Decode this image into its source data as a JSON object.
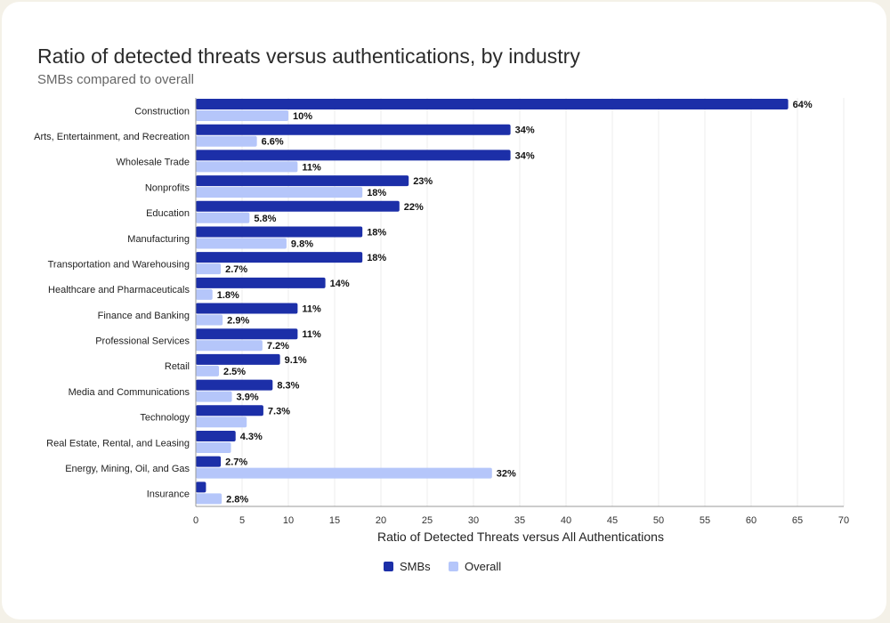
{
  "chart_data": {
    "type": "bar",
    "orientation": "horizontal",
    "title": "Ratio of detected threats versus authentications, by industry",
    "subtitle": "SMBs compared to overall",
    "xlabel": "Ratio of Detected Threats versus All Authentications",
    "ylabel": "",
    "xlim": [
      0,
      70
    ],
    "xticks": [
      "0",
      "5",
      "10",
      "15",
      "20",
      "25",
      "30",
      "35",
      "40",
      "45",
      "50",
      "55",
      "60",
      "65",
      "70"
    ],
    "grid": true,
    "legend_position": "bottom",
    "categories": [
      "Construction",
      "Arts, Entertainment, and Recreation",
      "Wholesale Trade",
      "Nonprofits",
      "Education",
      "Manufacturing",
      "Transportation and Warehousing",
      "Healthcare and Pharmaceuticals",
      "Finance and Banking",
      "Professional Services",
      "Retail",
      "Media and Communications",
      "Technology",
      "Real Estate, Rental, and Leasing",
      "Energy, Mining, Oil, and Gas",
      "Insurance"
    ],
    "series": [
      {
        "name": "SMBs",
        "color": "#1c2fa8",
        "values": [
          64,
          34,
          34,
          23,
          22,
          18,
          18,
          14,
          11,
          11,
          9.1,
          8.3,
          7.3,
          4.3,
          2.7,
          1.1
        ],
        "labels": [
          "64%",
          "34%",
          "34%",
          "23%",
          "22%",
          "18%",
          "18%",
          "14%",
          "11%",
          "11%",
          "9.1%",
          "8.3%",
          "7.3%",
          "4.3%",
          "2.7%",
          ""
        ]
      },
      {
        "name": "Overall",
        "color": "#b5c6fa",
        "values": [
          10,
          6.6,
          11,
          18,
          5.8,
          9.8,
          2.7,
          1.8,
          2.9,
          7.2,
          2.5,
          3.9,
          5.5,
          3.8,
          32,
          2.8
        ],
        "labels": [
          "10%",
          "6.6%",
          "11%",
          "18%",
          "5.8%",
          "9.8%",
          "2.7%",
          "1.8%",
          "2.9%",
          "7.2%",
          "2.5%",
          "3.9%",
          "",
          "",
          "32%",
          "2.8%"
        ]
      }
    ]
  }
}
